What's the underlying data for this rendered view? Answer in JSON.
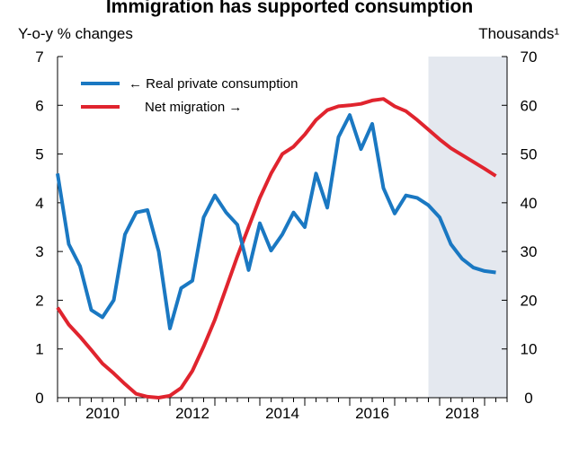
{
  "chart_data": {
    "type": "line",
    "title": "Immigration has supported consumption",
    "left_axis_label": "Y-o-y % changes",
    "right_axis_label": "Thousands¹",
    "left_ylim": [
      0,
      7
    ],
    "right_ylim": [
      0,
      70
    ],
    "left_ticks": [
      "0",
      "1",
      "2",
      "3",
      "4",
      "5",
      "6",
      "7"
    ],
    "right_ticks": [
      "0",
      "10",
      "20",
      "30",
      "40",
      "50",
      "60",
      "70"
    ],
    "x_ticks": [
      "2010",
      "2012",
      "2014",
      "2016",
      "2018"
    ],
    "xlim": [
      2009.5,
      2019.5
    ],
    "shaded_region": [
      2017.75,
      2019.5
    ],
    "grid": false,
    "legend_position": "top-left",
    "colors": {
      "consumption": "#1a78c2",
      "migration": "#e0242e",
      "shade": "#e4e8ef"
    },
    "series": [
      {
        "name": "← Real private consumption",
        "axis": "left",
        "x": [
          2009.5,
          2009.75,
          2010.0,
          2010.25,
          2010.5,
          2010.75,
          2011.0,
          2011.25,
          2011.5,
          2011.75,
          2012.0,
          2012.25,
          2012.5,
          2012.75,
          2013.0,
          2013.25,
          2013.5,
          2013.75,
          2014.0,
          2014.25,
          2014.5,
          2014.75,
          2015.0,
          2015.25,
          2015.5,
          2015.75,
          2016.0,
          2016.25,
          2016.5,
          2016.75,
          2017.0,
          2017.25,
          2017.5,
          2017.75,
          2018.0,
          2018.25,
          2018.5,
          2018.75,
          2019.0,
          2019.25
        ],
        "values": [
          4.6,
          3.15,
          2.7,
          1.8,
          1.65,
          2.0,
          3.35,
          3.8,
          3.85,
          3.0,
          1.42,
          2.25,
          2.4,
          3.7,
          4.15,
          3.8,
          3.55,
          2.62,
          3.58,
          3.02,
          3.35,
          3.8,
          3.5,
          4.6,
          3.9,
          5.35,
          5.8,
          5.1,
          5.62,
          4.3,
          3.78,
          4.15,
          4.1,
          3.95,
          3.7,
          3.15,
          2.85,
          2.67,
          2.6,
          2.57
        ]
      },
      {
        "name": "Net migration →",
        "axis": "right",
        "x": [
          2009.5,
          2009.75,
          2010.0,
          2010.25,
          2010.5,
          2010.75,
          2011.0,
          2011.25,
          2011.5,
          2011.75,
          2012.0,
          2012.25,
          2012.5,
          2012.75,
          2013.0,
          2013.25,
          2013.5,
          2013.75,
          2014.0,
          2014.25,
          2014.5,
          2014.75,
          2015.0,
          2015.25,
          2015.5,
          2015.75,
          2016.0,
          2016.25,
          2016.5,
          2016.75,
          2017.0,
          2017.25,
          2017.5,
          2017.75,
          2018.0,
          2018.25,
          2018.5,
          2018.75,
          2019.0,
          2019.25
        ],
        "values": [
          18.5,
          15.0,
          12.5,
          9.8,
          7.0,
          5.0,
          2.8,
          0.8,
          0.2,
          0.0,
          0.4,
          2.0,
          5.5,
          10.5,
          16.0,
          22.5,
          29.0,
          35.0,
          41.0,
          46.0,
          50.0,
          51.5,
          54.0,
          57.0,
          59.0,
          59.8,
          60.0,
          60.3,
          61.0,
          61.3,
          59.8,
          58.8,
          57.0,
          55.0,
          53.0,
          51.2,
          49.8,
          48.4,
          47.0,
          45.5
        ]
      }
    ]
  }
}
